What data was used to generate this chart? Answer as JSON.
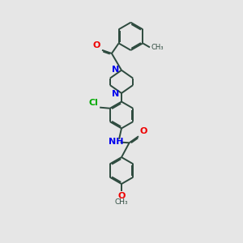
{
  "bg_color": "#e6e6e6",
  "bond_color": "#2d4a3e",
  "N_color": "#0000ee",
  "O_color": "#ee0000",
  "Cl_color": "#00aa00",
  "line_width": 1.4,
  "fig_size": [
    3.0,
    3.0
  ],
  "dpi": 100,
  "xlim": [
    1.5,
    8.5
  ],
  "ylim": [
    0.5,
    13.5
  ]
}
